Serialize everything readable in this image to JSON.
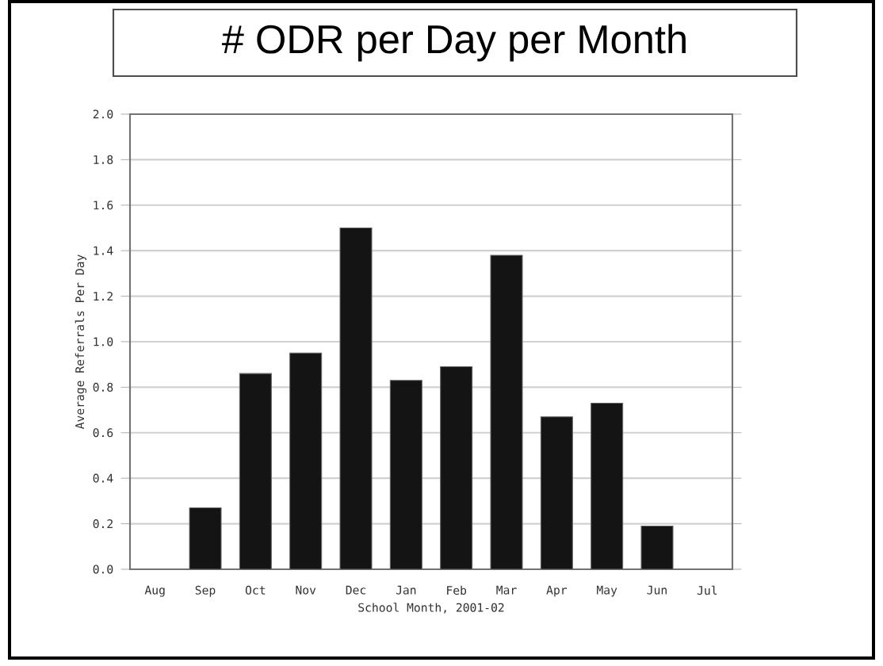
{
  "chart_data": {
    "type": "bar",
    "title": "# ODR per Day per Month",
    "xlabel": "School Month, 2001-02",
    "ylabel": "Average Referrals Per Day",
    "categories": [
      "Aug",
      "Sep",
      "Oct",
      "Nov",
      "Dec",
      "Jan",
      "Feb",
      "Mar",
      "Apr",
      "May",
      "Jun",
      "Jul"
    ],
    "values": [
      null,
      0.27,
      0.86,
      0.95,
      1.5,
      0.83,
      0.89,
      1.38,
      0.67,
      0.73,
      0.19,
      null
    ],
    "color": "#141414",
    "ylim": [
      0,
      2.0
    ],
    "yticks": [
      {
        "value": 0,
        "label": "0.0"
      },
      {
        "value": 0.2,
        "label": "0.2"
      },
      {
        "value": 0.4,
        "label": "0.4"
      },
      {
        "value": 0.6,
        "label": "0.6"
      },
      {
        "value": 0.8,
        "label": "0.8"
      },
      {
        "value": 1.0,
        "label": "1.0"
      },
      {
        "value": 1.2,
        "label": "1.2"
      },
      {
        "value": 1.4,
        "label": "1.4"
      },
      {
        "value": 1.6,
        "label": "1.6"
      },
      {
        "value": 1.8,
        "label": "1.8"
      },
      {
        "value": 2.0,
        "label": "2.0"
      }
    ],
    "grid": "y"
  }
}
